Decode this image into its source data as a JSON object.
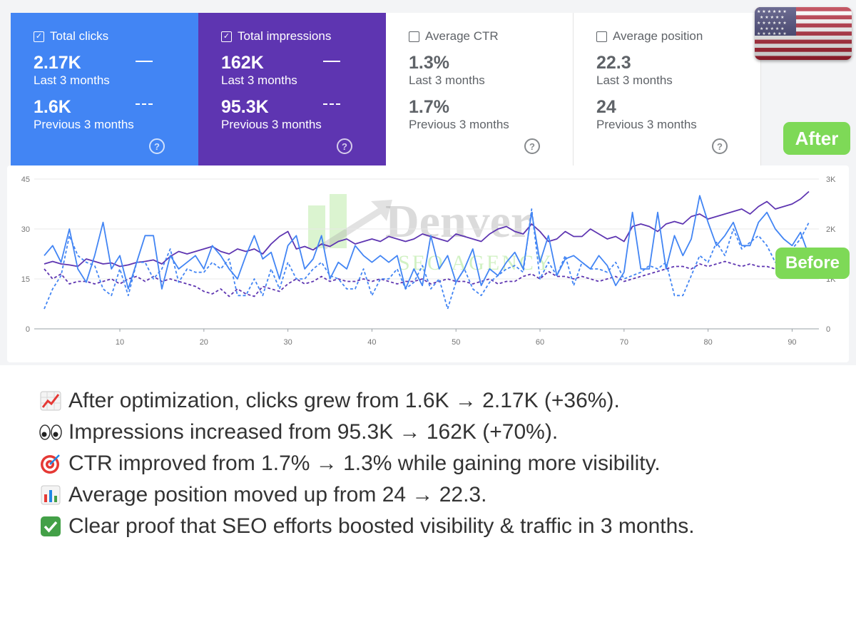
{
  "cards": [
    {
      "label": "Total clicks",
      "checked": true,
      "value": "2.17K",
      "period": "Last 3 months",
      "prev_value": "1.6K",
      "prev_period": "Previous 3 months"
    },
    {
      "label": "Total impressions",
      "checked": true,
      "value": "162K",
      "period": "Last 3 months",
      "prev_value": "95.3K",
      "prev_period": "Previous 3 months"
    },
    {
      "label": "Average CTR",
      "checked": false,
      "value": "1.3%",
      "period": "Last 3 months",
      "prev_value": "1.7%",
      "prev_period": "Previous 3 months"
    },
    {
      "label": "Average position",
      "checked": false,
      "value": "22.3",
      "period": "Last 3 months",
      "prev_value": "24",
      "prev_period": "Previous 3 months"
    }
  ],
  "help_glyph": "?",
  "check_glyph": "✓",
  "tags": {
    "after": "After",
    "before": "Before"
  },
  "watermark": {
    "title": "Denver",
    "subtitle": "SEO AGENCY"
  },
  "colors": {
    "clicks": "#4285f4",
    "impressions": "#5e35b1",
    "ctr_card": "#ffffff",
    "tag": "#7ed957"
  },
  "chart_data": {
    "type": "line",
    "x_ticks": [
      10,
      20,
      30,
      40,
      50,
      60,
      70,
      80,
      90
    ],
    "left_axis": {
      "ticks": [
        "0",
        "15",
        "30",
        "45"
      ],
      "range": [
        0,
        45
      ]
    },
    "right_axis": {
      "ticks": [
        "0",
        "1K",
        "2K",
        "3K"
      ],
      "range": [
        0,
        3000
      ]
    },
    "grid": true,
    "series": [
      {
        "axis": "left",
        "style": "solid",
        "color": "#4285f4",
        "values": [
          22,
          25,
          20,
          30,
          18,
          14,
          22,
          32,
          18,
          22,
          12,
          20,
          28,
          28,
          12,
          22,
          18,
          20,
          22,
          18,
          25,
          22,
          18,
          15,
          22,
          28,
          21,
          23,
          15,
          25,
          28,
          18,
          21,
          28,
          15,
          20,
          18,
          25,
          22,
          20,
          22,
          20,
          22,
          12,
          18,
          13,
          28,
          18,
          22,
          14,
          18,
          24,
          13,
          18,
          16,
          20,
          23,
          18,
          35,
          20,
          28,
          16,
          21,
          22,
          20,
          18,
          22,
          19,
          13,
          17,
          35,
          18,
          18,
          35,
          18,
          28,
          22,
          27,
          40,
          32,
          25,
          28,
          32,
          25,
          25,
          32,
          35,
          30,
          27,
          25,
          29,
          22
        ]
      },
      {
        "axis": "left",
        "style": "dashed",
        "color": "#4285f4",
        "values": [
          6,
          12,
          16,
          28,
          22,
          20,
          19,
          12,
          10,
          18,
          10,
          20,
          20,
          15,
          18,
          24,
          14,
          18,
          17,
          17,
          20,
          18,
          21,
          10,
          10,
          15,
          10,
          18,
          12,
          20,
          15,
          15,
          18,
          20,
          16,
          15,
          12,
          12,
          18,
          10,
          15,
          15,
          18,
          12,
          14,
          19,
          12,
          15,
          6,
          14,
          18,
          12,
          10,
          14,
          16,
          18,
          19,
          17,
          36,
          15,
          20,
          16,
          22,
          13,
          20,
          18,
          18,
          17,
          20,
          15,
          16,
          17,
          19,
          18,
          20,
          10,
          10,
          16,
          22,
          20,
          26,
          22,
          30,
          24,
          26,
          28,
          25,
          20,
          22,
          24,
          27,
          32
        ]
      },
      {
        "axis": "right",
        "style": "solid",
        "color": "#5e35b1",
        "values": [
          1300,
          1350,
          1300,
          1280,
          1250,
          1400,
          1350,
          1300,
          1320,
          1250,
          1280,
          1330,
          1350,
          1380,
          1300,
          1450,
          1550,
          1500,
          1550,
          1600,
          1650,
          1550,
          1500,
          1600,
          1550,
          1600,
          1500,
          1700,
          1850,
          1950,
          1600,
          1650,
          1580,
          1700,
          1650,
          1750,
          1800,
          1700,
          1750,
          1800,
          1750,
          1850,
          1800,
          1750,
          1800,
          1900,
          1850,
          1800,
          1750,
          1900,
          1850,
          1800,
          1750,
          1900,
          2000,
          2050,
          1950,
          1900,
          2100,
          1950,
          1750,
          1800,
          1950,
          1850,
          1850,
          2000,
          1900,
          1800,
          1850,
          1750,
          2050,
          2100,
          2050,
          1950,
          2100,
          2150,
          2100,
          2250,
          2300,
          2200,
          2250,
          2300,
          2350,
          2400,
          2300,
          2450,
          2550,
          2400,
          2450,
          2500,
          2600,
          2750
        ]
      },
      {
        "axis": "right",
        "style": "dashed",
        "color": "#5e35b1",
        "values": [
          1200,
          1000,
          1100,
          900,
          950,
          950,
          900,
          950,
          1000,
          900,
          1000,
          1050,
          950,
          1050,
          950,
          1000,
          950,
          900,
          850,
          750,
          700,
          800,
          650,
          800,
          700,
          650,
          850,
          800,
          750,
          900,
          1000,
          900,
          950,
          1050,
          950,
          1000,
          950,
          950,
          1000,
          950,
          1000,
          950,
          900,
          950,
          950,
          1000,
          900,
          950,
          1000,
          950,
          950,
          900,
          950,
          1000,
          900,
          950,
          950,
          1050,
          1100,
          1000,
          1150,
          1050,
          1050,
          1000,
          1050,
          1000,
          950,
          1000,
          1050,
          950,
          1000,
          1050,
          1100,
          1150,
          1200,
          1250,
          1250,
          1200,
          1300,
          1250,
          1300,
          1350,
          1300,
          1250,
          1300,
          1250,
          1250,
          1200,
          1250,
          1200,
          1200,
          1200
        ]
      }
    ]
  },
  "bullets": [
    {
      "icon": "chart-up-icon",
      "text": "After optimization, clicks grew from 1.6K → 2.17K (+36%)."
    },
    {
      "icon": "eyes-icon",
      "text": "Impressions increased from 95.3K → 162K (+70%)."
    },
    {
      "icon": "target-icon",
      "text": "CTR improved from 1.7% → 1.3% while gaining more visibility."
    },
    {
      "icon": "bar-chart-icon",
      "text": "Average position moved up from 24 → 22.3."
    },
    {
      "icon": "check-mark-icon",
      "text": "Clear proof that SEO efforts boosted visibility & traffic in 3 months."
    }
  ]
}
